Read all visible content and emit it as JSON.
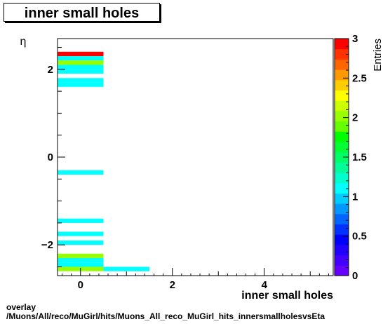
{
  "chart_data": {
    "type": "heatmap",
    "title": "inner small holes",
    "xlabel": "inner small holes",
    "ylabel": "η",
    "zlabel": "Entries",
    "xlim": [
      -0.5,
      5.5
    ],
    "ylim": [
      -2.7,
      2.7
    ],
    "zlim": [
      0,
      3
    ],
    "x_ticks": [
      0,
      2,
      4
    ],
    "y_ticks": [
      -2,
      0,
      2
    ],
    "z_ticks": [
      0,
      0.5,
      1,
      1.5,
      2,
      2.5,
      3
    ],
    "y_bin_width": 0.1,
    "x_bin_width": 1,
    "cells": [
      {
        "x": 0,
        "y": 2.35,
        "z": 3
      },
      {
        "x": 0,
        "y": 2.25,
        "z": 1
      },
      {
        "x": 0,
        "y": 2.15,
        "z": 2
      },
      {
        "x": 0,
        "y": 2.05,
        "z": 1
      },
      {
        "x": 0,
        "y": 1.95,
        "z": 1
      },
      {
        "x": 0,
        "y": 1.75,
        "z": 1
      },
      {
        "x": 0,
        "y": 1.65,
        "z": 1
      },
      {
        "x": 0,
        "y": -0.35,
        "z": 1
      },
      {
        "x": 0,
        "y": -1.45,
        "z": 1
      },
      {
        "x": 0,
        "y": -1.75,
        "z": 1
      },
      {
        "x": 0,
        "y": -1.95,
        "z": 1
      },
      {
        "x": 0,
        "y": -2.25,
        "z": 2
      },
      {
        "x": 0,
        "y": -2.35,
        "z": 1
      },
      {
        "x": 0,
        "y": -2.45,
        "z": 1
      },
      {
        "x": 0,
        "y": -2.55,
        "z": 2
      },
      {
        "x": 1,
        "y": -2.55,
        "z": 1
      }
    ]
  },
  "footer": {
    "line1": "overlay",
    "line2": "/Muons/All/reco/MuGirl/hits/Muons_All_reco_MuGirl_hits_innersmallholesvsEta"
  }
}
